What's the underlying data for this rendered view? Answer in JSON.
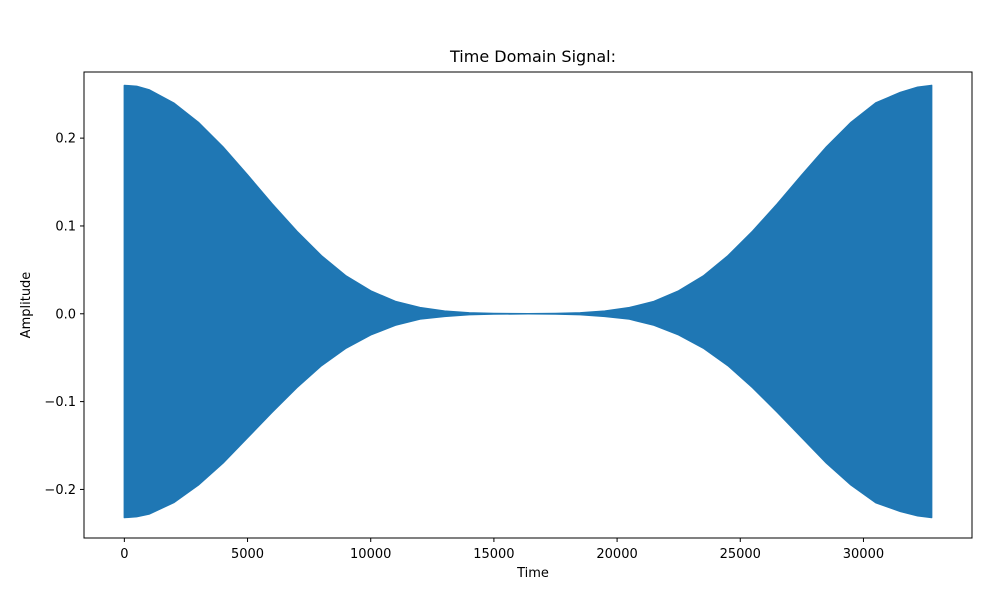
{
  "chart_data": {
    "type": "area",
    "title": "Time Domain Signal:",
    "xlabel": "Time",
    "ylabel": "Amplitude",
    "xlim": [
      -1638,
      34406
    ],
    "ylim": [
      -0.2553,
      0.2753
    ],
    "xticks": [
      0,
      5000,
      10000,
      15000,
      20000,
      25000,
      30000
    ],
    "xtick_labels": [
      "0",
      "5000",
      "10000",
      "15000",
      "20000",
      "25000",
      "30000"
    ],
    "yticks": [
      -0.2,
      -0.1,
      0.0,
      0.1,
      0.2
    ],
    "ytick_labels": [
      "−0.2",
      "−0.1",
      "0.0",
      "0.1",
      "0.2"
    ],
    "grid": false,
    "series": [
      {
        "color": "#1f77b4",
        "x": [
          0,
          500,
          1000,
          2000,
          3000,
          4000,
          5000,
          6000,
          7000,
          8000,
          9000,
          10000,
          11000,
          12000,
          13000,
          14000,
          15000,
          16384,
          17500,
          18500,
          19500,
          20500,
          21500,
          22500,
          23500,
          24500,
          25500,
          26500,
          27500,
          28500,
          29500,
          30500,
          31500,
          32200,
          32767
        ],
        "upper": [
          0.26,
          0.259,
          0.255,
          0.24,
          0.218,
          0.19,
          0.158,
          0.125,
          0.094,
          0.066,
          0.043,
          0.026,
          0.014,
          0.007,
          0.003,
          0.001,
          0.0003,
          0.0,
          0.0003,
          0.001,
          0.003,
          0.007,
          0.014,
          0.026,
          0.043,
          0.066,
          0.094,
          0.125,
          0.158,
          0.19,
          0.218,
          0.24,
          0.252,
          0.258,
          0.26
        ],
        "lower": [
          -0.232,
          -0.231,
          -0.228,
          -0.215,
          -0.195,
          -0.17,
          -0.141,
          -0.112,
          -0.084,
          -0.059,
          -0.039,
          -0.024,
          -0.013,
          -0.006,
          -0.003,
          -0.001,
          -0.0003,
          0.0,
          -0.0003,
          -0.001,
          -0.003,
          -0.006,
          -0.013,
          -0.024,
          -0.039,
          -0.059,
          -0.084,
          -0.112,
          -0.141,
          -0.17,
          -0.195,
          -0.215,
          -0.225,
          -0.23,
          -0.232
        ]
      }
    ]
  }
}
